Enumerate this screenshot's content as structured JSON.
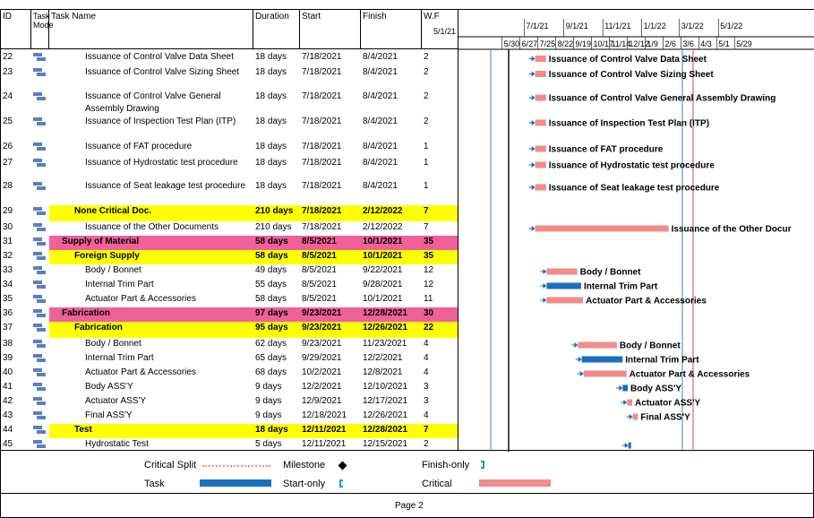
{
  "headers": {
    "id": "ID",
    "mode": "Task Mode",
    "name": "Task Name",
    "duration": "Duration",
    "start": "Start",
    "finish": "Finish",
    "wf": "W.F"
  },
  "timeline": {
    "top_labels": [
      "5/1/21",
      "7/1/21",
      "9/1/21",
      "11/1/21",
      "1/1/22",
      "3/1/22",
      "5/1/22"
    ],
    "bottom_labels": [
      "5/30",
      "6/27",
      "7/25",
      "8/22",
      "9/19",
      "10/17",
      "11/14",
      "12/12",
      "1/9",
      "2/6",
      "3/6",
      "4/3",
      "5/1",
      "5/29"
    ]
  },
  "rows": [
    {
      "id": "22",
      "name": "Issuance of  Control Valve Data Sheet",
      "duration": "18 days",
      "start": "7/18/2021",
      "finish": "8/4/2021",
      "wf": "2",
      "style": "normal",
      "indent": 2,
      "bar_label": "Issuance of  Control Valve Data Sheet",
      "bar_kind": "critical",
      "start_day": 78,
      "end_day": 95
    },
    {
      "id": "23",
      "name": "Issuance of  Control Valve Sizing Sheet",
      "duration": "18 days",
      "start": "7/18/2021",
      "finish": "8/4/2021",
      "wf": "2",
      "style": "normal",
      "indent": 2,
      "bar_label": "Issuance of Control Valve Sizing Sheet",
      "bar_kind": "critical",
      "start_day": 78,
      "end_day": 95
    },
    {
      "id": "24",
      "name": "Issuance of  Control Valve General Assembly Drawing",
      "duration": "18 days",
      "start": "7/18/2021",
      "finish": "8/4/2021",
      "wf": "2",
      "style": "normal",
      "indent": 2,
      "bar_label": "Issuance of  Control Valve General Assembly Drawing",
      "bar_kind": "critical",
      "start_day": 78,
      "end_day": 95
    },
    {
      "id": "25",
      "name": "Issuance of  Inspection Test Plan (ITP)",
      "duration": "18 days",
      "start": "7/18/2021",
      "finish": "8/4/2021",
      "wf": "2",
      "style": "normal",
      "indent": 2,
      "bar_label": "Issuance of  Inspection Test Plan (ITP)",
      "bar_kind": "critical",
      "start_day": 78,
      "end_day": 95
    },
    {
      "id": "26",
      "name": "Issuance of FAT procedure",
      "duration": "18 days",
      "start": "7/18/2021",
      "finish": "8/4/2021",
      "wf": "1",
      "style": "normal",
      "indent": 2,
      "bar_label": "Issuance of FAT procedure",
      "bar_kind": "critical",
      "start_day": 78,
      "end_day": 95
    },
    {
      "id": "27",
      "name": " Issuance of Hydrostatic test procedure",
      "duration": "18 days",
      "start": "7/18/2021",
      "finish": "8/4/2021",
      "wf": "1",
      "style": "normal",
      "indent": 2,
      "bar_label": "Issuance of Hydrostatic test procedure",
      "bar_kind": "critical",
      "start_day": 78,
      "end_day": 95
    },
    {
      "id": "28",
      "name": "Issuance of Seat leakage test procedure",
      "duration": "18 days",
      "start": "7/18/2021",
      "finish": "8/4/2021",
      "wf": "1",
      "style": "normal",
      "indent": 2,
      "bar_label": "Issuance of Seat leakage test procedure",
      "bar_kind": "critical",
      "start_day": 78,
      "end_day": 95
    },
    {
      "id": "29",
      "name": "None Critical Doc.",
      "duration": "210 days",
      "start": "7/18/2021",
      "finish": "2/12/2022",
      "wf": "7",
      "style": "yellow",
      "indent": 1,
      "bar_label": "",
      "bar_kind": "none",
      "start_day": 78,
      "end_day": 287
    },
    {
      "id": "30",
      "name": "Issuance of the Other Documents",
      "duration": "210 days",
      "start": "7/18/2021",
      "finish": "2/12/2022",
      "wf": "7",
      "style": "normal",
      "indent": 2,
      "bar_label": "Issuance of the Other Docur",
      "bar_kind": "critical",
      "start_day": 78,
      "end_day": 287
    },
    {
      "id": "31",
      "name": "Supply of Material",
      "duration": "58 days",
      "start": "8/5/2021",
      "finish": "10/1/2021",
      "wf": "35",
      "style": "pink",
      "indent": 0,
      "bar_label": "",
      "bar_kind": "none",
      "start_day": 96,
      "end_day": 153
    },
    {
      "id": "32",
      "name": "Foreign Supply",
      "duration": "58 days",
      "start": "8/5/2021",
      "finish": "10/1/2021",
      "wf": "35",
      "style": "yellow",
      "indent": 1,
      "bar_label": "",
      "bar_kind": "none",
      "start_day": 96,
      "end_day": 153
    },
    {
      "id": "33",
      "name": "Body / Bonnet",
      "duration": "49 days",
      "start": "8/5/2021",
      "finish": "9/22/2021",
      "wf": "12",
      "style": "normal",
      "indent": 2,
      "bar_label": "Body / Bonnet",
      "bar_kind": "critical",
      "start_day": 96,
      "end_day": 144
    },
    {
      "id": "34",
      "name": "Internal Trim Part",
      "duration": "55 days",
      "start": "8/5/2021",
      "finish": "9/28/2021",
      "wf": "12",
      "style": "normal",
      "indent": 2,
      "bar_label": "Internal Trim Part",
      "bar_kind": "task",
      "start_day": 96,
      "end_day": 150
    },
    {
      "id": "35",
      "name": "Actuator Part & Accessories",
      "duration": "58 days",
      "start": "8/5/2021",
      "finish": "10/1/2021",
      "wf": "11",
      "style": "normal",
      "indent": 2,
      "bar_label": "Actuator Part & Accessories",
      "bar_kind": "critical",
      "start_day": 96,
      "end_day": 153
    },
    {
      "id": "36",
      "name": "Fabrication",
      "duration": "97 days",
      "start": "9/23/2021",
      "finish": "12/28/2021",
      "wf": "30",
      "style": "pink",
      "indent": 0,
      "bar_label": "",
      "bar_kind": "none",
      "start_day": 145,
      "end_day": 241
    },
    {
      "id": "37",
      "name": "Fabrication",
      "duration": "95 days",
      "start": "9/23/2021",
      "finish": "12/26/2021",
      "wf": "22",
      "style": "yellow",
      "indent": 1,
      "bar_label": "",
      "bar_kind": "none",
      "start_day": 145,
      "end_day": 239
    },
    {
      "id": "38",
      "name": "Body / Bonnet",
      "duration": "62 days",
      "start": "9/23/2021",
      "finish": "11/23/2021",
      "wf": "4",
      "style": "normal",
      "indent": 2,
      "bar_label": "Body / Bonnet",
      "bar_kind": "critical",
      "start_day": 145,
      "end_day": 206
    },
    {
      "id": "39",
      "name": "Internal Trim Part",
      "duration": "65 days",
      "start": "9/29/2021",
      "finish": "12/2/2021",
      "wf": "4",
      "style": "normal",
      "indent": 2,
      "bar_label": "Internal Trim Part",
      "bar_kind": "task",
      "start_day": 151,
      "end_day": 215
    },
    {
      "id": "40",
      "name": "Actuator Part & Accessories",
      "duration": "68 days",
      "start": "10/2/2021",
      "finish": "12/8/2021",
      "wf": "4",
      "style": "normal",
      "indent": 2,
      "bar_label": "Actuator Part & Accessories",
      "bar_kind": "critical",
      "start_day": 154,
      "end_day": 221
    },
    {
      "id": "41",
      "name": "Body ASS'Y",
      "duration": "9 days",
      "start": "12/2/2021",
      "finish": "12/10/2021",
      "wf": "3",
      "style": "normal",
      "indent": 2,
      "bar_label": "Body ASS'Y",
      "bar_kind": "task",
      "start_day": 215,
      "end_day": 223
    },
    {
      "id": "42",
      "name": "Actuator ASS'Y",
      "duration": "9 days",
      "start": "12/9/2021",
      "finish": "12/17/2021",
      "wf": "3",
      "style": "normal",
      "indent": 2,
      "bar_label": "Actuator ASS'Y",
      "bar_kind": "critical",
      "start_day": 222,
      "end_day": 230
    },
    {
      "id": "43",
      "name": "Final ASS'Y",
      "duration": "9 days",
      "start": "12/18/2021",
      "finish": "12/26/2021",
      "wf": "4",
      "style": "normal",
      "indent": 2,
      "bar_label": "Final ASS'Y",
      "bar_kind": "critical",
      "start_day": 231,
      "end_day": 239
    },
    {
      "id": "44",
      "name": "Test",
      "duration": "18 days",
      "start": "12/11/2021",
      "finish": "12/28/2021",
      "wf": "7",
      "style": "yellow",
      "indent": 1,
      "bar_label": "",
      "bar_kind": "none",
      "start_day": 224,
      "end_day": 241
    },
    {
      "id": "45",
      "name": "Hydrostatic Test",
      "duration": "5 days",
      "start": "12/11/2021",
      "finish": "12/15/2021",
      "wf": "2",
      "style": "normal",
      "indent": 2,
      "bar_label": "",
      "bar_kind": "task",
      "start_day": 224,
      "end_day": 228
    }
  ],
  "legend": {
    "critical_split": "Critical Split",
    "milestone": "Milestone",
    "finish_only": "Finish-only",
    "task": "Task",
    "start_only": "Start-only",
    "critical": "Critical"
  },
  "footer": {
    "page": "Page 2"
  },
  "colors": {
    "yellow": "#ffff00",
    "pink": "#f0609a",
    "critical": "#f08c8c",
    "task": "#1a6fbf",
    "mode_icon": "#5b7fbf"
  }
}
